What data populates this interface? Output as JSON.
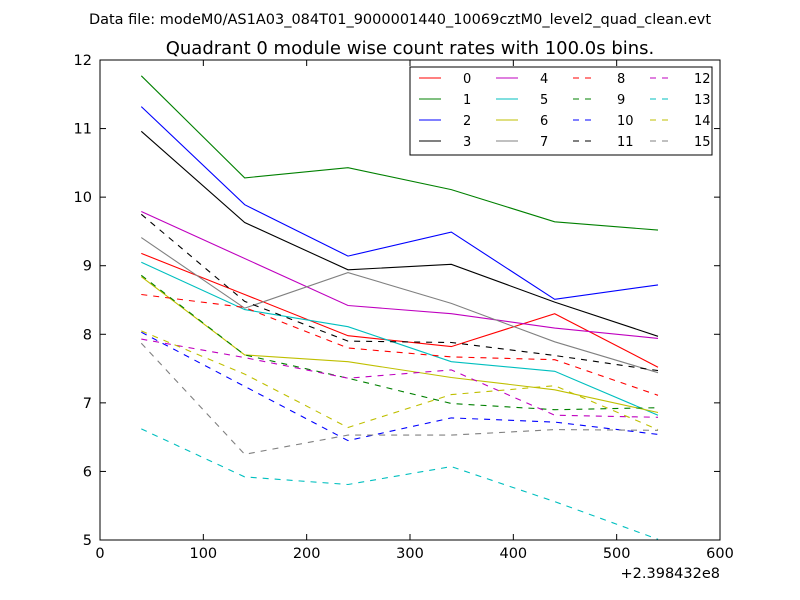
{
  "suptitle": "Data file: modeM0/AS1A03_084T01_9000001440_10069cztM0_level2_quad_clean.evt",
  "chart_data": {
    "type": "line",
    "title": "Quadrant 0 module wise count rates with 100.0s bins.",
    "xlabel": "",
    "ylabel": "",
    "x_offset_label": "+2.398432e8",
    "xlim": [
      0,
      600
    ],
    "ylim": [
      5,
      12
    ],
    "x_ticks": [
      0,
      100,
      200,
      300,
      400,
      500,
      600
    ],
    "y_ticks": [
      5,
      6,
      7,
      8,
      9,
      10,
      11,
      12
    ],
    "grid": false,
    "legend_position": "top-right",
    "legend_columns": 4,
    "x": [
      40,
      140,
      240,
      340,
      440,
      540
    ],
    "series": [
      {
        "name": "0",
        "color": "#ff0000",
        "dash": "solid",
        "values": [
          9.18,
          8.58,
          7.98,
          7.82,
          8.3,
          7.52
        ]
      },
      {
        "name": "1",
        "color": "#008000",
        "dash": "solid",
        "values": [
          11.77,
          10.28,
          10.43,
          10.11,
          9.64,
          9.52
        ]
      },
      {
        "name": "2",
        "color": "#0000ff",
        "dash": "solid",
        "values": [
          11.32,
          9.89,
          9.14,
          9.49,
          8.51,
          8.72
        ]
      },
      {
        "name": "3",
        "color": "#000000",
        "dash": "solid",
        "values": [
          10.96,
          9.63,
          8.94,
          9.02,
          8.47,
          7.97
        ]
      },
      {
        "name": "4",
        "color": "#bf00bf",
        "dash": "solid",
        "values": [
          9.79,
          null,
          8.42,
          8.3,
          8.09,
          7.94
        ]
      },
      {
        "name": "5",
        "color": "#00bfbf",
        "dash": "solid",
        "values": [
          9.05,
          8.36,
          8.11,
          7.6,
          7.46,
          6.82
        ]
      },
      {
        "name": "6",
        "color": "#bfbf00",
        "dash": "solid",
        "values": [
          8.84,
          7.7,
          7.6,
          7.37,
          7.19,
          6.86
        ]
      },
      {
        "name": "7",
        "color": "#808080",
        "dash": "solid",
        "values": [
          9.41,
          8.38,
          8.9,
          8.45,
          7.89,
          7.44
        ]
      },
      {
        "name": "8",
        "color": "#ff0000",
        "dash": "dashed",
        "values": [
          8.58,
          8.39,
          7.8,
          7.67,
          7.63,
          7.11
        ]
      },
      {
        "name": "9",
        "color": "#008000",
        "dash": "dashed",
        "values": [
          8.86,
          7.7,
          7.36,
          6.99,
          6.9,
          6.93
        ]
      },
      {
        "name": "10",
        "color": "#0000ff",
        "dash": "dashed",
        "values": [
          8.03,
          7.24,
          6.45,
          6.78,
          6.72,
          6.54
        ]
      },
      {
        "name": "11",
        "color": "#000000",
        "dash": "dashed",
        "values": [
          9.75,
          8.48,
          7.9,
          7.88,
          7.69,
          7.47
        ]
      },
      {
        "name": "12",
        "color": "#bf00bf",
        "dash": "dashed",
        "values": [
          7.93,
          7.66,
          7.36,
          7.48,
          6.82,
          6.79
        ]
      },
      {
        "name": "13",
        "color": "#00bfbf",
        "dash": "dashed",
        "values": [
          6.62,
          5.92,
          5.81,
          6.07,
          5.56,
          5.01
        ]
      },
      {
        "name": "14",
        "color": "#bfbf00",
        "dash": "dashed",
        "values": [
          8.05,
          7.42,
          6.64,
          7.12,
          7.25,
          6.61
        ]
      },
      {
        "name": "15",
        "color": "#808080",
        "dash": "dashed",
        "values": [
          7.87,
          6.25,
          6.53,
          6.53,
          6.61,
          6.6
        ]
      }
    ]
  }
}
